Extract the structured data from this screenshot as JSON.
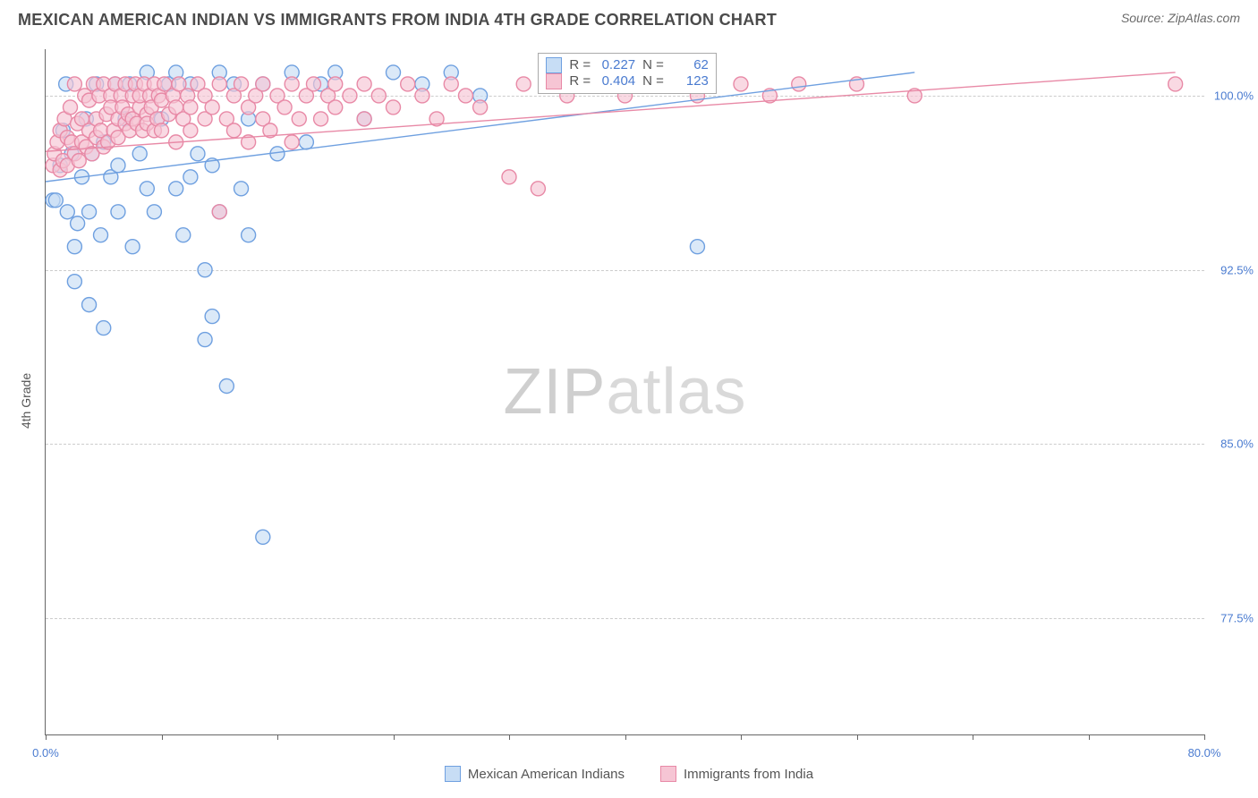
{
  "title": "MEXICAN AMERICAN INDIAN VS IMMIGRANTS FROM INDIA 4TH GRADE CORRELATION CHART",
  "source": "Source: ZipAtlas.com",
  "ylabel": "4th Grade",
  "watermark_a": "ZIP",
  "watermark_b": "atlas",
  "chart": {
    "type": "scatter",
    "xlim": [
      0,
      80
    ],
    "ylim": [
      72.5,
      102.0
    ],
    "xtick_positions": [
      0,
      8,
      16,
      24,
      32,
      40,
      48,
      56,
      64,
      72,
      80
    ],
    "xtick_labels_shown": {
      "0": "0.0%",
      "80": "80.0%"
    },
    "ytick_positions": [
      77.5,
      85.0,
      92.5,
      100.0
    ],
    "ytick_labels": [
      "77.5%",
      "85.0%",
      "92.5%",
      "100.0%"
    ],
    "grid_color": "#cccccc",
    "axis_color": "#666666",
    "background_color": "#ffffff",
    "tick_label_color": "#4a7bd0",
    "marker_radius": 8,
    "marker_stroke_width": 1.4,
    "line_width": 1.4,
    "series": [
      {
        "key": "blue",
        "label": "Mexican American Indians",
        "fill": "#c7ddf5",
        "stroke": "#6fa0e0",
        "fill_opacity": 0.65,
        "r_value": "0.227",
        "n_value": "62",
        "regression": {
          "x1": 0,
          "y1": 96.3,
          "x2": 60,
          "y2": 101.0
        },
        "points": [
          [
            0.5,
            95.5
          ],
          [
            0.7,
            95.5
          ],
          [
            1.0,
            97.0
          ],
          [
            1.2,
            98.5
          ],
          [
            1.4,
            100.5
          ],
          [
            1.5,
            95.0
          ],
          [
            1.8,
            97.5
          ],
          [
            2.0,
            93.5
          ],
          [
            2.0,
            92.0
          ],
          [
            2.2,
            94.5
          ],
          [
            2.5,
            96.5
          ],
          [
            2.8,
            99.0
          ],
          [
            3.0,
            95.0
          ],
          [
            3.0,
            91.0
          ],
          [
            3.2,
            97.5
          ],
          [
            3.5,
            100.5
          ],
          [
            3.8,
            94.0
          ],
          [
            4.0,
            98.0
          ],
          [
            4.0,
            90.0
          ],
          [
            4.5,
            96.5
          ],
          [
            4.8,
            100.5
          ],
          [
            5.0,
            97.0
          ],
          [
            5.0,
            95.0
          ],
          [
            5.5,
            99.0
          ],
          [
            5.8,
            100.5
          ],
          [
            6.0,
            93.5
          ],
          [
            6.5,
            97.5
          ],
          [
            7.0,
            101.0
          ],
          [
            7.0,
            96.0
          ],
          [
            7.5,
            95.0
          ],
          [
            8.0,
            99.0
          ],
          [
            8.5,
            100.5
          ],
          [
            9.0,
            96.0
          ],
          [
            9.0,
            101.0
          ],
          [
            9.5,
            94.0
          ],
          [
            10.0,
            100.5
          ],
          [
            10.0,
            96.5
          ],
          [
            10.5,
            97.5
          ],
          [
            11.0,
            92.5
          ],
          [
            11.0,
            89.5
          ],
          [
            11.5,
            90.5
          ],
          [
            11.5,
            97.0
          ],
          [
            12.0,
            101.0
          ],
          [
            12.0,
            95.0
          ],
          [
            12.5,
            87.5
          ],
          [
            13.0,
            100.5
          ],
          [
            13.5,
            96.0
          ],
          [
            14.0,
            94.0
          ],
          [
            14.0,
            99.0
          ],
          [
            15.0,
            100.5
          ],
          [
            15.0,
            81.0
          ],
          [
            16.0,
            97.5
          ],
          [
            17.0,
            101.0
          ],
          [
            18.0,
            98.0
          ],
          [
            19.0,
            100.5
          ],
          [
            20.0,
            101.0
          ],
          [
            22.0,
            99.0
          ],
          [
            24.0,
            101.0
          ],
          [
            26.0,
            100.5
          ],
          [
            28.0,
            101.0
          ],
          [
            30.0,
            100.0
          ],
          [
            45.0,
            93.5
          ]
        ]
      },
      {
        "key": "pink",
        "label": "Immigrants from India",
        "fill": "#f6c5d4",
        "stroke": "#e889a6",
        "fill_opacity": 0.65,
        "r_value": "0.404",
        "n_value": "123",
        "regression": {
          "x1": 0,
          "y1": 97.6,
          "x2": 78,
          "y2": 101.0
        },
        "points": [
          [
            0.5,
            97.0
          ],
          [
            0.6,
            97.5
          ],
          [
            0.8,
            98.0
          ],
          [
            1.0,
            98.5
          ],
          [
            1.0,
            96.8
          ],
          [
            1.2,
            97.2
          ],
          [
            1.3,
            99.0
          ],
          [
            1.5,
            98.2
          ],
          [
            1.5,
            97.0
          ],
          [
            1.7,
            99.5
          ],
          [
            1.8,
            98.0
          ],
          [
            2.0,
            97.5
          ],
          [
            2.0,
            100.5
          ],
          [
            2.2,
            98.8
          ],
          [
            2.3,
            97.2
          ],
          [
            2.5,
            99.0
          ],
          [
            2.5,
            98.0
          ],
          [
            2.7,
            100.0
          ],
          [
            2.8,
            97.8
          ],
          [
            3.0,
            98.5
          ],
          [
            3.0,
            99.8
          ],
          [
            3.2,
            97.5
          ],
          [
            3.3,
            100.5
          ],
          [
            3.5,
            98.2
          ],
          [
            3.5,
            99.0
          ],
          [
            3.7,
            100.0
          ],
          [
            3.8,
            98.5
          ],
          [
            4.0,
            97.8
          ],
          [
            4.0,
            100.5
          ],
          [
            4.2,
            99.2
          ],
          [
            4.3,
            98.0
          ],
          [
            4.5,
            100.0
          ],
          [
            4.5,
            99.5
          ],
          [
            4.7,
            98.5
          ],
          [
            4.8,
            100.5
          ],
          [
            5.0,
            99.0
          ],
          [
            5.0,
            98.2
          ],
          [
            5.2,
            100.0
          ],
          [
            5.3,
            99.5
          ],
          [
            5.5,
            98.8
          ],
          [
            5.5,
            100.5
          ],
          [
            5.7,
            99.2
          ],
          [
            5.8,
            98.5
          ],
          [
            6.0,
            100.0
          ],
          [
            6.0,
            99.0
          ],
          [
            6.2,
            100.5
          ],
          [
            6.3,
            98.8
          ],
          [
            6.5,
            99.5
          ],
          [
            6.5,
            100.0
          ],
          [
            6.7,
            98.5
          ],
          [
            6.8,
            100.5
          ],
          [
            7.0,
            99.2
          ],
          [
            7.0,
            98.8
          ],
          [
            7.2,
            100.0
          ],
          [
            7.3,
            99.5
          ],
          [
            7.5,
            98.5
          ],
          [
            7.5,
            100.5
          ],
          [
            7.7,
            99.0
          ],
          [
            7.8,
            100.0
          ],
          [
            8.0,
            99.8
          ],
          [
            8.0,
            98.5
          ],
          [
            8.2,
            100.5
          ],
          [
            8.5,
            99.2
          ],
          [
            8.8,
            100.0
          ],
          [
            9.0,
            99.5
          ],
          [
            9.0,
            98.0
          ],
          [
            9.2,
            100.5
          ],
          [
            9.5,
            99.0
          ],
          [
            9.8,
            100.0
          ],
          [
            10.0,
            99.5
          ],
          [
            10.0,
            98.5
          ],
          [
            10.5,
            100.5
          ],
          [
            11.0,
            99.0
          ],
          [
            11.0,
            100.0
          ],
          [
            11.5,
            99.5
          ],
          [
            12.0,
            100.5
          ],
          [
            12.0,
            95.0
          ],
          [
            12.5,
            99.0
          ],
          [
            13.0,
            100.0
          ],
          [
            13.0,
            98.5
          ],
          [
            13.5,
            100.5
          ],
          [
            14.0,
            99.5
          ],
          [
            14.0,
            98.0
          ],
          [
            14.5,
            100.0
          ],
          [
            15.0,
            99.0
          ],
          [
            15.0,
            100.5
          ],
          [
            15.5,
            98.5
          ],
          [
            16.0,
            100.0
          ],
          [
            16.5,
            99.5
          ],
          [
            17.0,
            100.5
          ],
          [
            17.0,
            98.0
          ],
          [
            17.5,
            99.0
          ],
          [
            18.0,
            100.0
          ],
          [
            18.5,
            100.5
          ],
          [
            19.0,
            99.0
          ],
          [
            19.5,
            100.0
          ],
          [
            20.0,
            99.5
          ],
          [
            20.0,
            100.5
          ],
          [
            21.0,
            100.0
          ],
          [
            22.0,
            99.0
          ],
          [
            22.0,
            100.5
          ],
          [
            23.0,
            100.0
          ],
          [
            24.0,
            99.5
          ],
          [
            25.0,
            100.5
          ],
          [
            26.0,
            100.0
          ],
          [
            27.0,
            99.0
          ],
          [
            28.0,
            100.5
          ],
          [
            29.0,
            100.0
          ],
          [
            30.0,
            99.5
          ],
          [
            32.0,
            96.5
          ],
          [
            33.0,
            100.5
          ],
          [
            34.0,
            96.0
          ],
          [
            36.0,
            100.0
          ],
          [
            38.0,
            100.5
          ],
          [
            40.0,
            100.0
          ],
          [
            42.0,
            100.5
          ],
          [
            45.0,
            100.0
          ],
          [
            48.0,
            100.5
          ],
          [
            50.0,
            100.0
          ],
          [
            52.0,
            100.5
          ],
          [
            56.0,
            100.5
          ],
          [
            60.0,
            100.0
          ],
          [
            78.0,
            100.5
          ]
        ]
      }
    ],
    "stats_box": {
      "left_pct": 42.5,
      "top_pct": 0.5,
      "r_label": "R  =",
      "n_label": "N  ="
    },
    "legend_bottom": [
      {
        "swatch_fill": "#c7ddf5",
        "swatch_stroke": "#6fa0e0",
        "label": "Mexican American Indians"
      },
      {
        "swatch_fill": "#f6c5d4",
        "swatch_stroke": "#e889a6",
        "label": "Immigrants from India"
      }
    ]
  }
}
